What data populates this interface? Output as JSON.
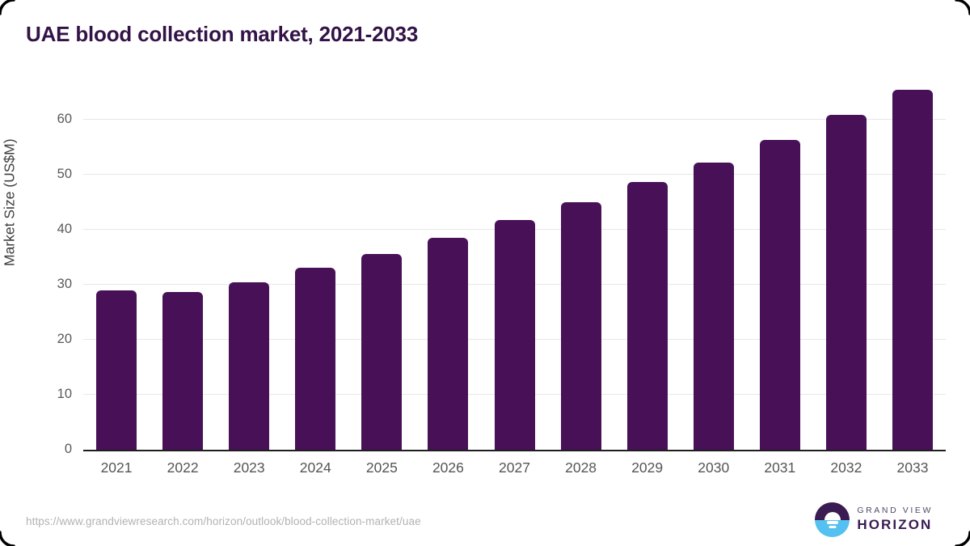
{
  "title": "UAE blood collection market, 2021-2033",
  "chart_data": {
    "type": "bar",
    "title": "UAE blood collection market, 2021-2033",
    "categories": [
      "2021",
      "2022",
      "2023",
      "2024",
      "2025",
      "2026",
      "2027",
      "2028",
      "2029",
      "2030",
      "2031",
      "2032",
      "2033"
    ],
    "values": [
      28.9,
      28.7,
      30.4,
      33.0,
      35.6,
      38.5,
      41.8,
      44.9,
      48.6,
      52.2,
      56.3,
      60.8,
      65.4
    ],
    "xlabel": "",
    "ylabel": "Market Size (US$M)",
    "ylim": [
      0,
      67
    ],
    "yticks": [
      0,
      10,
      20,
      30,
      40,
      50,
      60
    ],
    "grid": true,
    "legend": "none",
    "bar_color": "#481157"
  },
  "footer": {
    "source_url": "https://www.grandviewresearch.com/horizon/outlook/blood-collection-market/uae",
    "logo": {
      "line1": "GRAND VIEW",
      "line2": "HORIZON"
    }
  },
  "colors": {
    "title_text": "#331347",
    "bar": "#481157",
    "axis_line": "#1f1f1f",
    "gridline": "#e8e8e8",
    "tick_text": "#595959",
    "url_text": "#b2b2b2",
    "logo_purple": "#3a1b52",
    "logo_blue": "#55c1f0",
    "frame": "#000000"
  }
}
